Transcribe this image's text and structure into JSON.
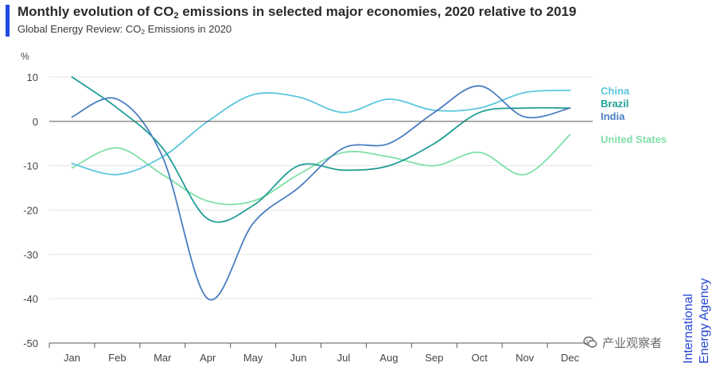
{
  "header": {
    "title_main": "Monthly evolution of CO",
    "title_sub": "2",
    "title_rest": " emissions in selected major economies, 2020 relative to 2019",
    "subtitle_main": "Global Energy Review: CO",
    "subtitle_sub": "2",
    "subtitle_rest": " Emissions in 2020",
    "accent_color": "#1f4be0"
  },
  "logo": {
    "line1": "International",
    "line2": "Energy Agency",
    "color": "#2445d6"
  },
  "watermark": {
    "text": "产业观察者"
  },
  "chart_data": {
    "type": "line",
    "yunit": "%",
    "ylim": [
      -50,
      10
    ],
    "yticks": [
      10,
      0,
      -10,
      -20,
      -30,
      -40,
      -50
    ],
    "grid": true,
    "legend": "right",
    "categories": [
      "Jan",
      "Feb",
      "Mar",
      "Apr",
      "May",
      "Jun",
      "Jul",
      "Aug",
      "Sep",
      "Oct",
      "Nov",
      "Dec"
    ],
    "series": [
      {
        "name": "China",
        "color": "#5cc6dc",
        "values": [
          -9.5,
          -12,
          -8,
          0,
          6,
          5.5,
          2,
          5,
          2.5,
          3,
          6.5,
          7
        ]
      },
      {
        "name": "Brazil",
        "color": "#1f9e95",
        "values": [
          10,
          3,
          -6,
          -22,
          -19,
          -10,
          -11,
          -10,
          -5,
          2,
          3,
          3
        ]
      },
      {
        "name": "India",
        "color": "#4a7fc1",
        "values": [
          1,
          5,
          -8,
          -40,
          -23,
          -15,
          -6,
          -5,
          2,
          8,
          1,
          3
        ]
      },
      {
        "name": "United States",
        "color": "#7fe0a6",
        "values": [
          -10.5,
          -6,
          -12,
          -18,
          -18,
          -12,
          -7,
          -8,
          -10,
          -7,
          -12,
          -3
        ]
      }
    ]
  }
}
